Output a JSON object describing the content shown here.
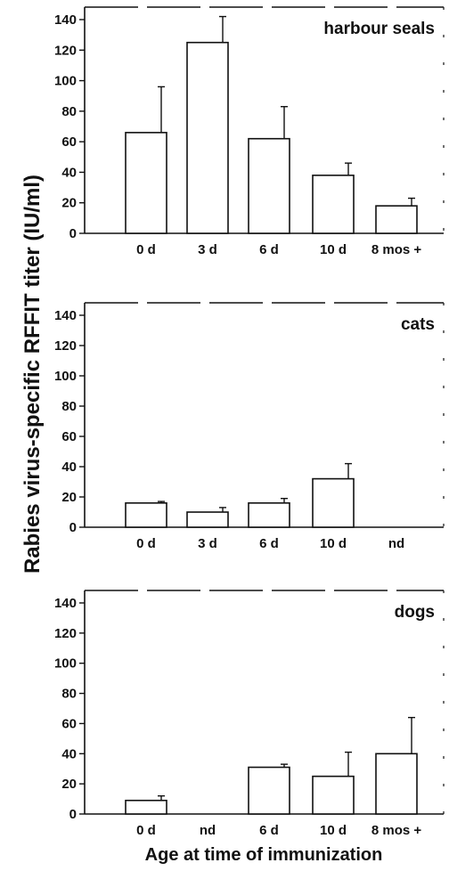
{
  "figure": {
    "ylabel": "Rabies virus-specific RFFIT titer (IU/ml)",
    "xlabel": "Age at time of immunization"
  },
  "chart_data": [
    {
      "type": "bar",
      "title": "harbour seals",
      "categories": [
        "0 d",
        "3 d",
        "6 d",
        "10 d",
        "8 mos +"
      ],
      "values": [
        66,
        125,
        62,
        38,
        18
      ],
      "errors": [
        30,
        17,
        21,
        8,
        5
      ],
      "ylim": [
        0,
        140
      ],
      "yticks": [
        "0",
        "20",
        "40",
        "60",
        "80",
        "100",
        "120",
        "140"
      ]
    },
    {
      "type": "bar",
      "title": "cats",
      "categories": [
        "0 d",
        "3 d",
        "6 d",
        "10 d",
        "nd"
      ],
      "values": [
        16,
        10,
        16,
        32,
        null
      ],
      "errors": [
        1,
        3,
        3,
        10,
        null
      ],
      "ylim": [
        0,
        140
      ],
      "yticks": [
        "0",
        "20",
        "40",
        "60",
        "80",
        "100",
        "120",
        "140"
      ]
    },
    {
      "type": "bar",
      "title": "dogs",
      "categories": [
        "0 d",
        "nd",
        "6 d",
        "10 d",
        "8 mos +"
      ],
      "values": [
        9,
        null,
        31,
        25,
        40
      ],
      "errors": [
        3,
        null,
        2,
        16,
        24
      ],
      "ylim": [
        0,
        140
      ],
      "yticks": [
        "0",
        "20",
        "40",
        "60",
        "80",
        "100",
        "120",
        "140"
      ]
    }
  ]
}
